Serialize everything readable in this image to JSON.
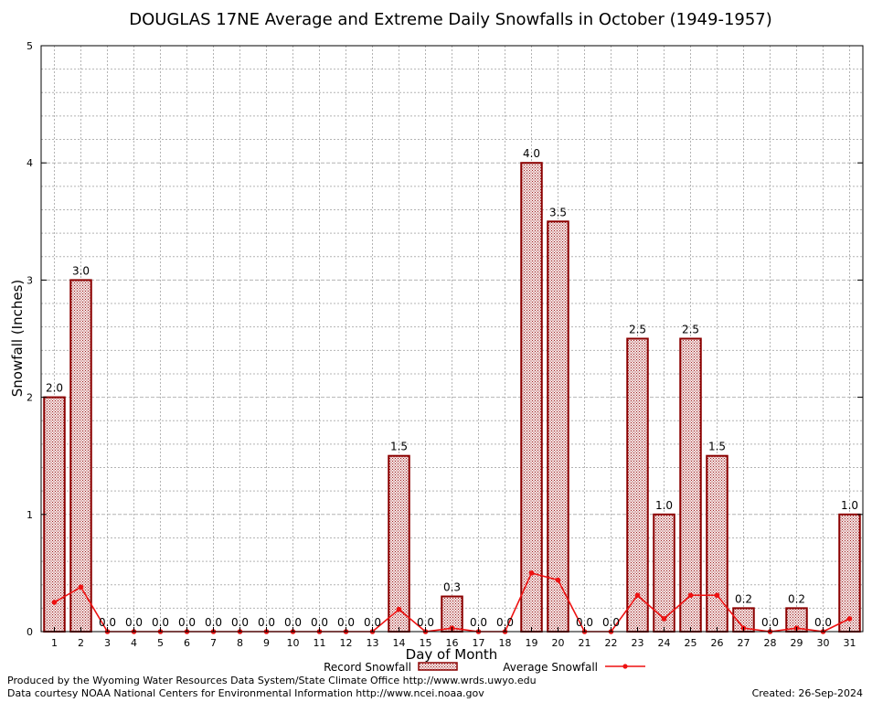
{
  "chart_data": {
    "type": "bar",
    "title": "DOUGLAS 17NE Average and Extreme Daily Snowfalls in October (1949-1957)",
    "xlabel": "Day of Month",
    "ylabel": "Snowfall (Inches)",
    "ylim": [
      0,
      5
    ],
    "yticks": [
      "0",
      "1",
      "2",
      "3",
      "4",
      "5"
    ],
    "grid": true,
    "categories": [
      "1",
      "2",
      "3",
      "4",
      "5",
      "6",
      "7",
      "8",
      "9",
      "10",
      "11",
      "12",
      "13",
      "14",
      "15",
      "16",
      "17",
      "18",
      "19",
      "20",
      "21",
      "22",
      "23",
      "24",
      "25",
      "26",
      "27",
      "28",
      "29",
      "30",
      "31"
    ],
    "series": [
      {
        "name": "Record Snowfall",
        "type": "bar",
        "values": [
          2.0,
          3.0,
          0.0,
          0.0,
          0.0,
          0.0,
          0.0,
          0.0,
          0.0,
          0.0,
          0.0,
          0.0,
          0.0,
          1.5,
          0.0,
          0.3,
          0.0,
          0.0,
          4.0,
          3.5,
          0.0,
          0.0,
          2.5,
          1.0,
          2.5,
          1.5,
          0.2,
          0.0,
          0.2,
          0.0,
          1.0
        ],
        "labels": [
          "2.0",
          "3.0",
          "0.0",
          "0.0",
          "0.0",
          "0.0",
          "0.0",
          "0.0",
          "0.0",
          "0.0",
          "0.0",
          "0.0",
          "0.0",
          "1.5",
          "0.0",
          "0.3",
          "0.0",
          "0.0",
          "4.0",
          "3.5",
          "0.0",
          "0.0",
          "2.5",
          "1.0",
          "2.5",
          "1.5",
          "0.2",
          "0.0",
          "0.2",
          "0.0",
          "1.0"
        ]
      },
      {
        "name": "Average Snowfall",
        "type": "line",
        "values": [
          0.25,
          0.38,
          0.0,
          0.0,
          0.0,
          0.0,
          0.0,
          0.0,
          0.0,
          0.0,
          0.0,
          0.0,
          0.0,
          0.19,
          0.0,
          0.03,
          0.0,
          0.0,
          0.5,
          0.44,
          0.0,
          0.0,
          0.31,
          0.11,
          0.31,
          0.31,
          0.03,
          0.0,
          0.03,
          0.0,
          0.11
        ]
      }
    ],
    "legend": {
      "placement": "bottom",
      "record_label": "Record Snowfall",
      "average_label": "Average Snowfall"
    },
    "colors": {
      "bar_stroke": "#8b0000",
      "bar_fill": "#e8c8c8",
      "line": "#ee1111",
      "grid": "#b4b4b4"
    }
  },
  "footer": {
    "produced_by": "Produced by the Wyoming Water Resources Data System/State Climate Office http://www.wrds.uwyo.edu",
    "courtesy": "Data courtesy NOAA National Centers for Environmental Information http://www.ncei.noaa.gov",
    "created": "Created:  26-Sep-2024"
  }
}
